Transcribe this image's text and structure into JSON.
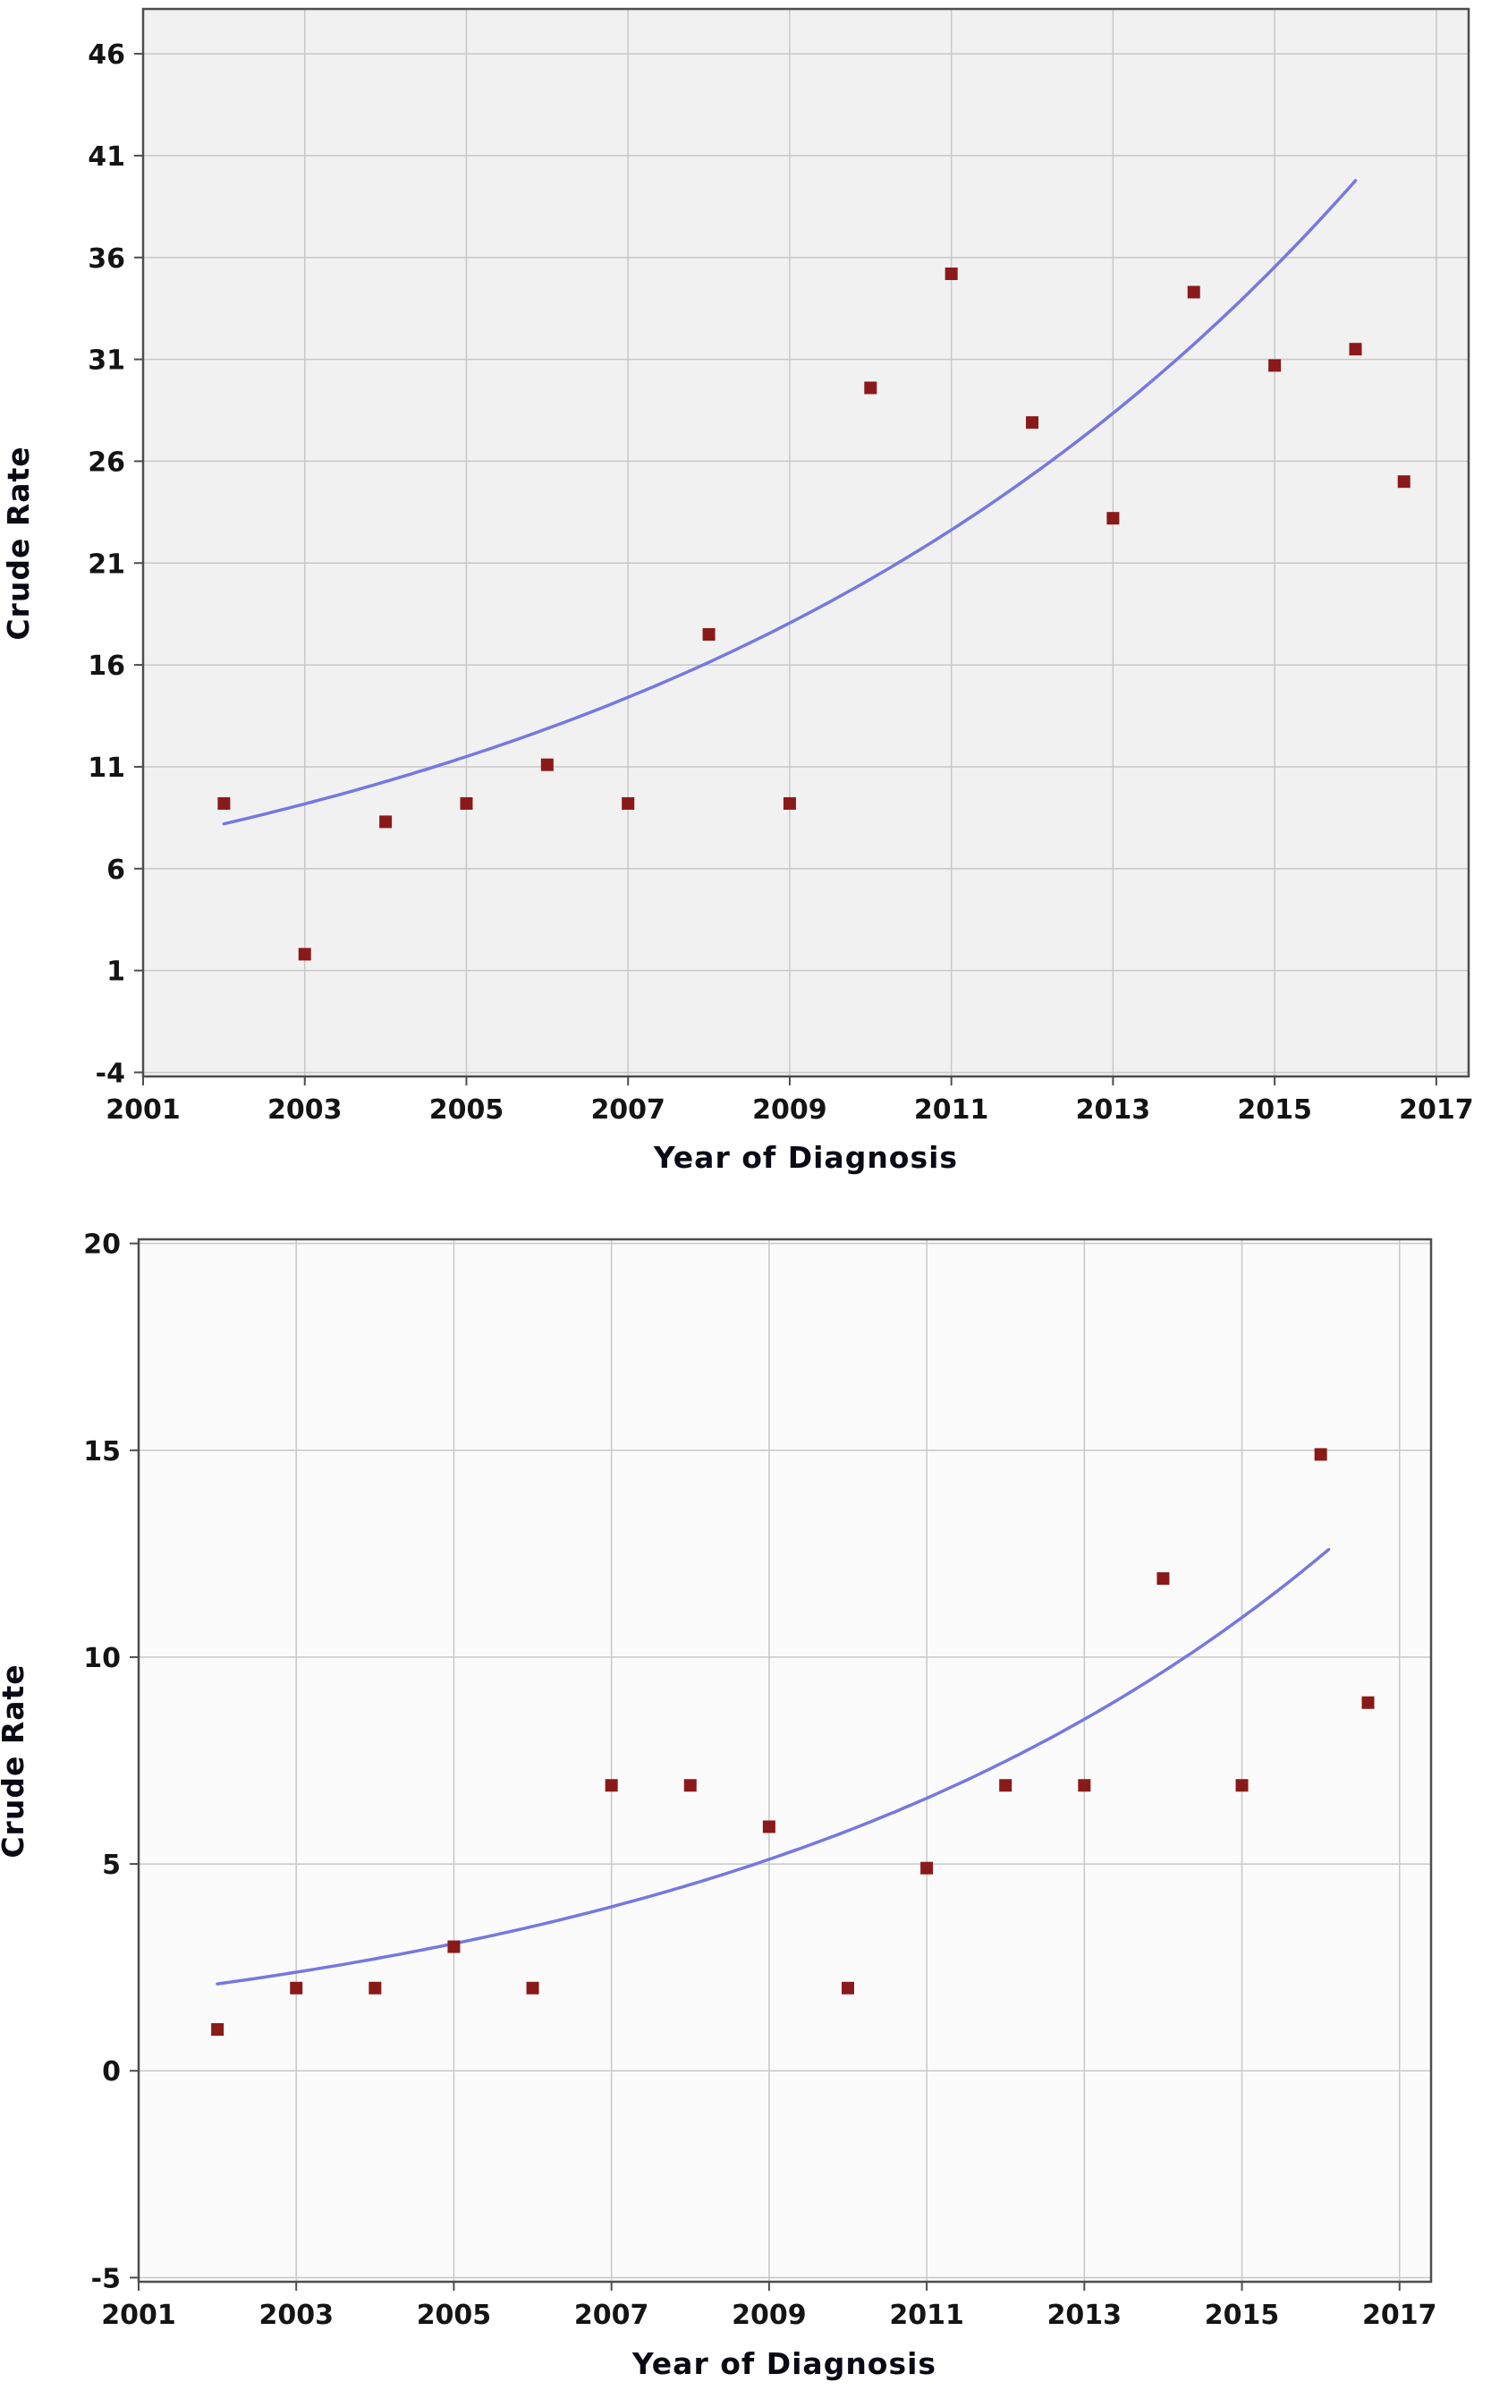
{
  "figure": {
    "description": "Two stacked scatter plots of crude rate by year of diagnosis with exponential trend lines"
  },
  "chart_data": [
    {
      "type": "scatter",
      "title": "",
      "xlabel": "Year of Diagnosis",
      "ylabel": "Crude Rate",
      "x_ticks": [
        2001,
        2003,
        2005,
        2007,
        2009,
        2011,
        2013,
        2015,
        2017
      ],
      "y_ticks": [
        46,
        41,
        36,
        31,
        26,
        21,
        16,
        11,
        6,
        1,
        -4
      ],
      "xlim": [
        2001,
        2017.4
      ],
      "ylim": [
        -4.2,
        48.2
      ],
      "grid": true,
      "legend": null,
      "points": [
        [
          2002,
          9.2
        ],
        [
          2003,
          1.8
        ],
        [
          2004,
          8.3
        ],
        [
          2005,
          9.2
        ],
        [
          2006,
          11.1
        ],
        [
          2007,
          9.2
        ],
        [
          2008,
          17.5
        ],
        [
          2009,
          9.2
        ],
        [
          2010,
          29.6
        ],
        [
          2011,
          35.2
        ],
        [
          2012,
          27.9
        ],
        [
          2013,
          23.2
        ],
        [
          2014,
          34.3
        ],
        [
          2015,
          30.7
        ],
        [
          2016,
          31.5
        ],
        [
          2016.6,
          25.0
        ]
      ],
      "trend": {
        "type": "exponential",
        "x0": 2002,
        "y0": 8.2,
        "x1": 2016.05,
        "y1": 40.0
      },
      "colors": {
        "point": "#8a1a1a",
        "trend": "#7678e0",
        "grid": "#c8c8c8",
        "frame": "#4d4d4d",
        "plot_bg": "#f1f1f1",
        "text": "#141414"
      }
    },
    {
      "type": "scatter",
      "title": "",
      "xlabel": "Year of Diagnosis",
      "ylabel": "Crude Rate",
      "x_ticks": [
        2001,
        2003,
        2005,
        2007,
        2009,
        2011,
        2013,
        2015,
        2017
      ],
      "y_ticks": [
        20,
        15,
        10,
        5,
        0,
        -5
      ],
      "xlim": [
        2001,
        2017.4
      ],
      "ylim": [
        -5.1,
        20.1
      ],
      "grid": true,
      "legend": null,
      "points": [
        [
          2002,
          1.0
        ],
        [
          2003,
          2.0
        ],
        [
          2004,
          2.0
        ],
        [
          2005,
          3.0
        ],
        [
          2006,
          2.0
        ],
        [
          2007,
          6.9
        ],
        [
          2008,
          6.9
        ],
        [
          2009,
          5.9
        ],
        [
          2010,
          2.0
        ],
        [
          2011,
          4.9
        ],
        [
          2012,
          6.9
        ],
        [
          2013,
          6.9
        ],
        [
          2014,
          11.9
        ],
        [
          2015,
          6.9
        ],
        [
          2016,
          14.9
        ],
        [
          2016.6,
          8.9
        ]
      ],
      "trend": {
        "type": "exponential",
        "x0": 2002,
        "y0": 2.1,
        "x1": 2016.1,
        "y1": 12.6
      },
      "colors": {
        "point": "#8a1a1a",
        "trend": "#7678e0",
        "grid": "#c8c8c8",
        "frame": "#4d4d4d",
        "plot_bg": "#fbfbfb",
        "text": "#141414"
      }
    }
  ]
}
